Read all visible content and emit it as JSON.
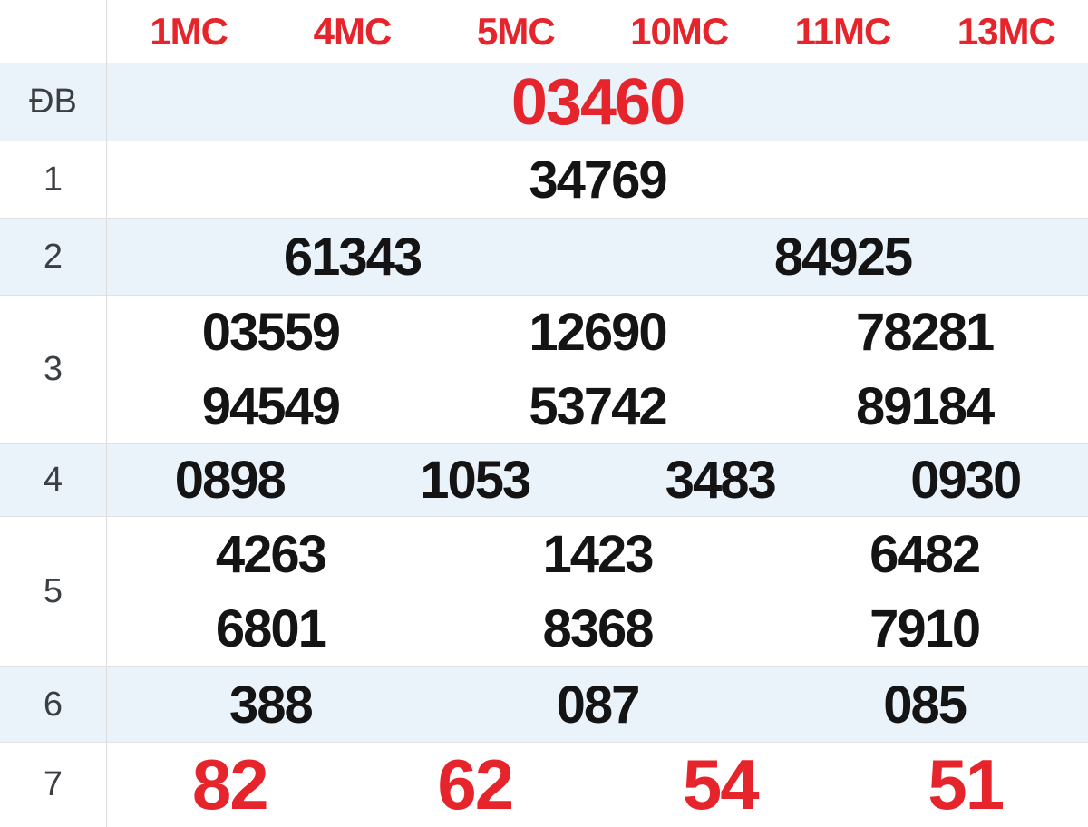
{
  "table": {
    "stations": [
      "1MC",
      "4MC",
      "5MC",
      "10MC",
      "11MC",
      "13MC"
    ],
    "rows": [
      {
        "prize": "ĐB",
        "kind": "jackpot",
        "cells": [
          [
            "03460"
          ]
        ]
      },
      {
        "prize": "1",
        "kind": "normal",
        "cells": [
          [
            "34769"
          ]
        ]
      },
      {
        "prize": "2",
        "kind": "normal",
        "cells": [
          [
            "61343"
          ],
          [
            "84925"
          ]
        ]
      },
      {
        "prize": "3",
        "kind": "normal",
        "cells": [
          [
            "03559",
            "94549"
          ],
          [
            "12690",
            "53742"
          ],
          [
            "78281",
            "89184"
          ]
        ]
      },
      {
        "prize": "4",
        "kind": "normal",
        "cells": [
          [
            "0898"
          ],
          [
            "1053"
          ],
          [
            "3483"
          ],
          [
            "0930"
          ]
        ]
      },
      {
        "prize": "5",
        "kind": "normal",
        "cells": [
          [
            "4263",
            "6801"
          ],
          [
            "1423",
            "8368"
          ],
          [
            "6482",
            "7910"
          ]
        ]
      },
      {
        "prize": "6",
        "kind": "normal",
        "cells": [
          [
            "388"
          ],
          [
            "087"
          ],
          [
            "085"
          ]
        ]
      },
      {
        "prize": "7",
        "kind": "red",
        "cells": [
          [
            "82"
          ],
          [
            "62"
          ],
          [
            "54"
          ],
          [
            "51"
          ]
        ]
      }
    ]
  },
  "colors": {
    "accent_red": "#e6242b",
    "row_alt": "#eaf2fa",
    "border": "#e2e2e2",
    "number": "#141414",
    "label": "#3b3e42"
  }
}
